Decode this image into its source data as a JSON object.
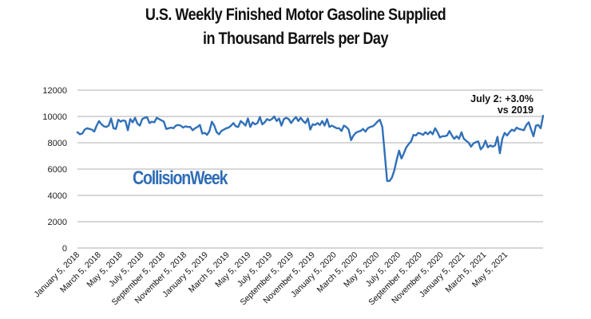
{
  "chart_data": {
    "type": "line",
    "title": "U.S. Weekly Finished Motor Gasoline Supplied",
    "subtitle": "in Thousand Barrels per Day",
    "title_lines": [
      "U.S. Weekly Finished Motor Gasoline Supplied",
      "in Thousand Barrels per Day"
    ],
    "xlabel": "",
    "ylabel": "",
    "ylim": [
      0,
      12000
    ],
    "yticks": [
      0,
      2000,
      4000,
      6000,
      8000,
      10000,
      12000
    ],
    "ytick_labels": [
      "0",
      "2000",
      "4000",
      "6000",
      "8000",
      "10000",
      "12000"
    ],
    "grid": true,
    "legend": null,
    "line_color": "#3070b8",
    "grid_color": "#bfbfbf",
    "xtick_labels": [
      "January 5, 2018",
      "March 5, 2018",
      "May 5, 2018",
      "July 5, 2018",
      "September 5, 2018",
      "November 5, 2018",
      "January 5, 2019",
      "March 5, 2019",
      "May 5, 2019",
      "July 5, 2019",
      "September 5, 2019",
      "November 5, 2019",
      "January 5, 2020",
      "March 5, 2020",
      "May 5, 2020",
      "July 5, 2020",
      "September 5, 2020",
      "November 5, 2020",
      "January 5, 2021",
      "March 5, 2021",
      "May 5, 2021"
    ],
    "annotation": {
      "lines": [
        "July 2: +3.0%",
        "vs 2019"
      ]
    },
    "watermark": "CollisionWeek",
    "series": [
      {
        "name": "Weekly Finished Motor Gasoline Supplied",
        "x_start": "January 5, 2018",
        "x_end": "July 2, 2021",
        "frequency": "weekly",
        "values": [
          8800,
          8650,
          8700,
          9000,
          9100,
          9050,
          9000,
          8850,
          9300,
          9650,
          9400,
          9250,
          9200,
          9300,
          9850,
          9100,
          9050,
          9750,
          9600,
          9700,
          9650,
          8950,
          9800,
          9550,
          9900,
          9450,
          9300,
          9800,
          9900,
          9950,
          9500,
          9600,
          9550,
          9900,
          9800,
          9700,
          9600,
          9050,
          9100,
          9150,
          9100,
          9300,
          9350,
          9300,
          9150,
          9250,
          9200,
          9200,
          8950,
          9100,
          9200,
          9350,
          8700,
          8750,
          8600,
          8900,
          9600,
          9300,
          8800,
          8650,
          8900,
          9000,
          9100,
          9150,
          9300,
          9500,
          9250,
          9200,
          9650,
          9500,
          9300,
          9850,
          9200,
          9550,
          9400,
          9500,
          9950,
          9400,
          9550,
          9800,
          9700,
          9800,
          10000,
          9650,
          9850,
          9300,
          9800,
          9900,
          9800,
          9500,
          9750,
          9950,
          9650,
          9900,
          9650,
          9500,
          9850,
          9000,
          9400,
          9350,
          9500,
          9350,
          9650,
          9300,
          9800,
          9200,
          9300,
          9200,
          9100,
          9100,
          8900,
          9300,
          9200,
          9000,
          8200,
          8550,
          8750,
          8850,
          8900,
          9050,
          8850,
          9100,
          9200,
          9250,
          9400,
          9600,
          9750,
          9200,
          7200,
          5100,
          5100,
          5350,
          5900,
          6700,
          7400,
          6800,
          7200,
          7650,
          7900,
          8100,
          8600,
          8550,
          8750,
          8700,
          8600,
          8800,
          8650,
          8850,
          8650,
          9100,
          8800,
          8400,
          8500,
          8500,
          8550,
          8900,
          8550,
          8300,
          8500,
          8300,
          8800,
          8300,
          8150,
          8000,
          7700,
          7950,
          8050,
          8100,
          7500,
          7700,
          8150,
          7650,
          7800,
          7700,
          7800,
          8450,
          7200,
          8300,
          8750,
          8550,
          8800,
          9000,
          8900,
          9150,
          9050,
          9000,
          8950,
          9350,
          9550,
          9000,
          8500,
          9300,
          9350,
          9100,
          10050
        ]
      }
    ]
  }
}
